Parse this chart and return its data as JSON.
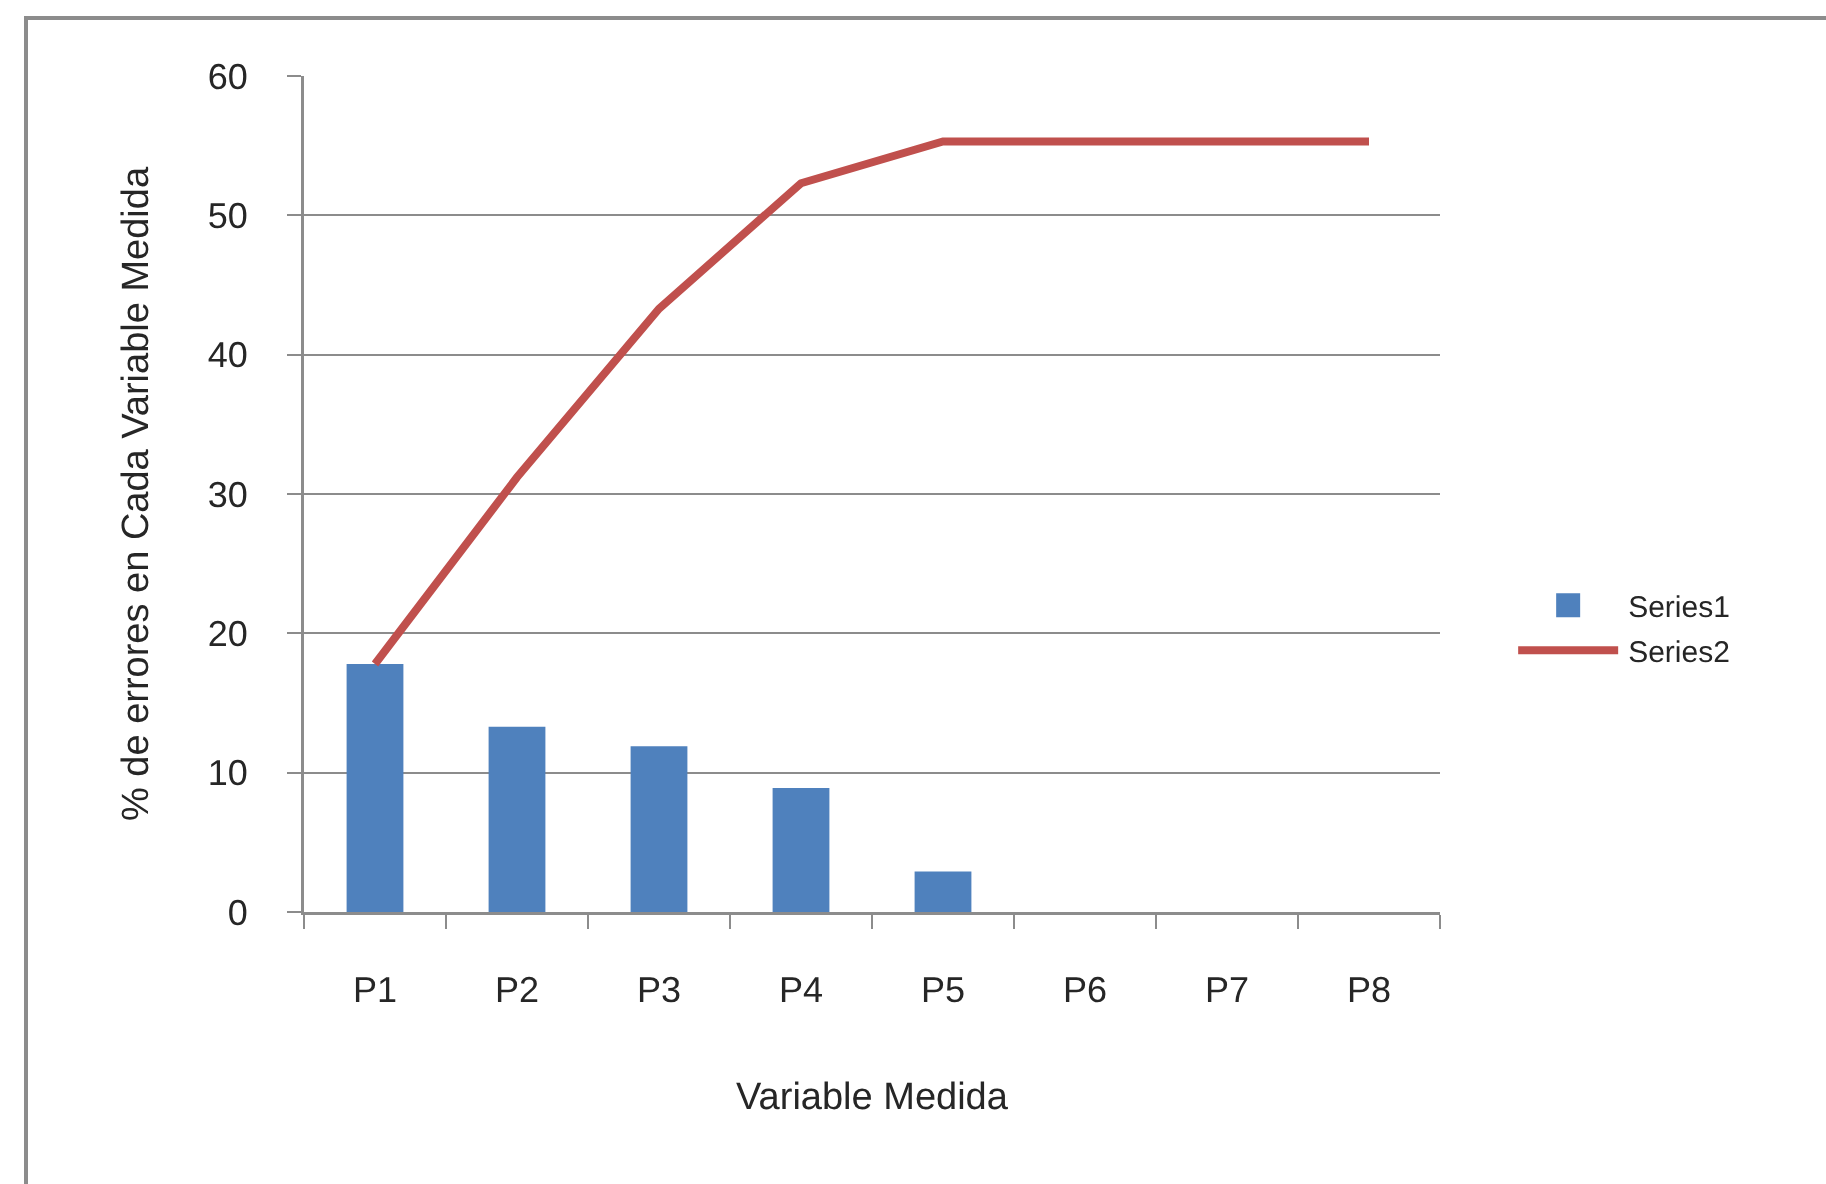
{
  "chart_data": {
    "type": "bar",
    "xlabel": "Variable Medida",
    "ylabel": "% de errores en Cada Variable Medida",
    "categories": [
      "P1",
      "P2",
      "P3",
      "P4",
      "P5",
      "P6",
      "P7",
      "P8"
    ],
    "series": [
      {
        "name": "Series1",
        "color": "#4f81bd",
        "values": [
          17.8,
          13.3,
          11.9,
          8.9,
          2.9,
          0,
          0,
          0
        ]
      },
      {
        "name": "Series2",
        "type": "line",
        "color": "#c0504d",
        "values": [
          17.8,
          31.2,
          43.3,
          52.3,
          55.3,
          55.3,
          55.3,
          55.3
        ]
      }
    ],
    "ylim": [
      0,
      60
    ],
    "yticks": [
      0,
      10,
      20,
      30,
      40,
      50,
      60
    ],
    "grid": "y",
    "legend": "right"
  }
}
